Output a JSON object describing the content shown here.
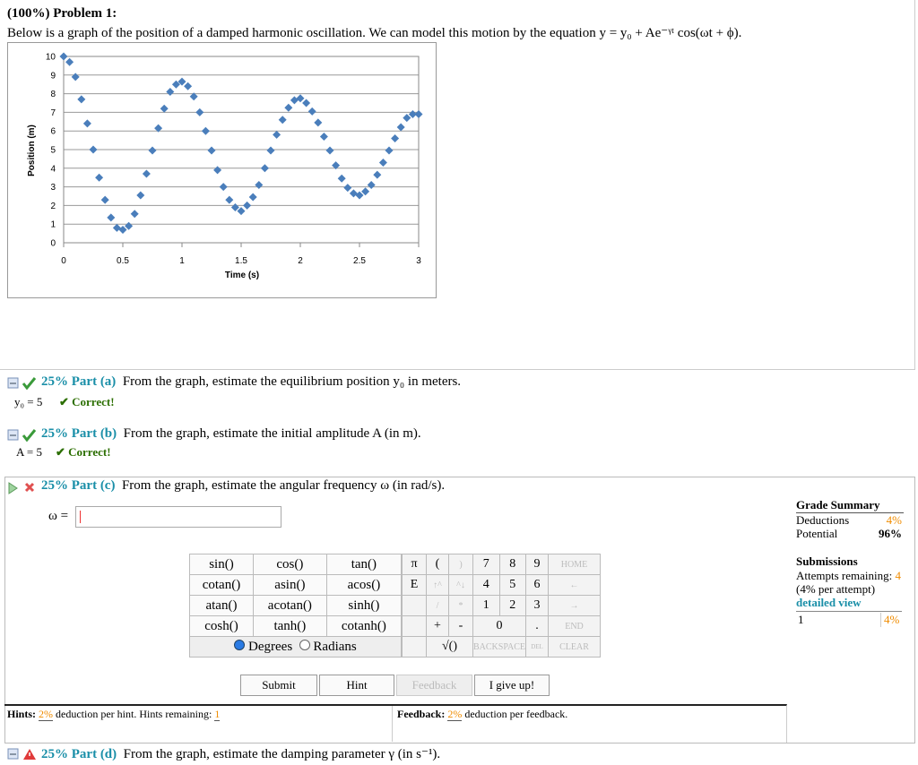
{
  "problem": {
    "title": "(100%) Problem 1:",
    "statement": "Below is a graph of the position of a damped harmonic oscillation. We can model this motion by the equation y = y₀ + Ae⁻ᵞᵗ cos(ωt + ϕ)."
  },
  "graph": {
    "type": "scatter",
    "xlabel": "Time (s)",
    "ylabel": "Position (m)",
    "color": "#4a7ebb",
    "grid": true,
    "xlim": [
      0,
      3
    ],
    "ylim": [
      0,
      10
    ],
    "xticks": [
      0,
      0.5,
      1,
      1.5,
      2,
      2.5,
      3
    ],
    "yticks": [
      0,
      1,
      2,
      3,
      4,
      5,
      6,
      7,
      8,
      9,
      10
    ],
    "x": [
      0,
      0.05,
      0.1,
      0.15,
      0.2,
      0.25,
      0.3,
      0.35,
      0.4,
      0.45,
      0.5,
      0.55,
      0.6,
      0.65,
      0.7,
      0.75,
      0.8,
      0.85,
      0.9,
      0.95,
      1,
      1.05,
      1.1,
      1.15,
      1.2,
      1.25,
      1.3,
      1.35,
      1.4,
      1.45,
      1.5,
      1.55,
      1.6,
      1.65,
      1.7,
      1.75,
      1.8,
      1.85,
      1.9,
      1.95,
      2,
      2.05,
      2.1,
      2.15,
      2.2,
      2.25,
      2.3,
      2.35,
      2.4,
      2.45,
      2.5,
      2.55,
      2.6,
      2.65,
      2.7,
      2.75,
      2.8,
      2.85,
      2.9,
      2.95,
      3
    ],
    "y": [
      10,
      9.7,
      8.9,
      7.7,
      6.4,
      5.0,
      3.5,
      2.3,
      1.35,
      0.8,
      0.7,
      0.9,
      1.55,
      2.55,
      3.7,
      4.95,
      6.15,
      7.2,
      8.1,
      8.5,
      8.65,
      8.4,
      7.85,
      7.0,
      6.0,
      4.95,
      3.9,
      3.0,
      2.3,
      1.9,
      1.7,
      2.0,
      2.45,
      3.1,
      4.0,
      4.95,
      5.8,
      6.6,
      7.25,
      7.65,
      7.75,
      7.5,
      7.05,
      6.45,
      5.7,
      4.95,
      4.15,
      3.45,
      2.95,
      2.65,
      2.55,
      2.75,
      3.1,
      3.65,
      4.3,
      4.95,
      5.6,
      6.2,
      6.7,
      6.9,
      6.9
    ]
  },
  "parts": [
    {
      "percent": "25%",
      "label": "Part (a)",
      "question": "From the graph, estimate the equilibrium position y₀ in meters.",
      "answer": "y₀ = 5",
      "status": "✔ Correct!"
    },
    {
      "percent": "25%",
      "label": "Part (b)",
      "question": "From the graph, estimate the initial amplitude A (in m).",
      "answer": "A = 5",
      "status": "✔ Correct!"
    },
    {
      "percent": "25%",
      "label": "Part (c)",
      "question": "From the graph, estimate the angular frequency ω (in rad/s).",
      "answer": "ω ="
    },
    {
      "percent": "25%",
      "label": "Part (d)",
      "question": "From the graph, estimate the damping parameter γ (in s⁻¹)."
    }
  ],
  "grade_summary": {
    "title": "Grade Summary",
    "rows": [
      [
        "Deductions",
        "4%"
      ],
      [
        "Potential",
        "96%"
      ]
    ]
  },
  "submissions": {
    "title": "Submissions",
    "attempts": "Attempts remaining:",
    "attempts_value": "4",
    "per_attempt": "(4% per attempt)",
    "detailed": "detailed view",
    "history": [
      [
        "1",
        "4%"
      ]
    ]
  },
  "calculator": {
    "functions": [
      [
        "sin()",
        "cos()",
        "tan()"
      ],
      [
        "cotan()",
        "asin()",
        "acos()"
      ],
      [
        "atan()",
        "acotan()",
        "sinh()"
      ],
      [
        "cosh()",
        "tanh()",
        "cotanh()"
      ]
    ],
    "angle_modes": [
      "Degrees",
      "Radians"
    ],
    "keys": [
      [
        "π",
        "(",
        ")",
        "7",
        "8",
        "9",
        "HOME"
      ],
      [
        "E",
        "↑^",
        "^↓",
        "4",
        "5",
        "6",
        "←"
      ],
      [
        "/",
        "*",
        "1",
        "2",
        "3",
        "→"
      ],
      [
        "+",
        "-",
        "0",
        ".",
        "END"
      ],
      [
        "√()",
        "BACKSPACE",
        "DEL",
        "CLEAR"
      ]
    ]
  },
  "buttons": [
    "Submit",
    "Hint",
    "Feedback",
    "I give up!"
  ],
  "hints": {
    "label": "Hints:",
    "value": "2%",
    "text": "deduction per hint. Hints remaining:",
    "remaining": "1"
  },
  "feedback": {
    "label": "Feedback:",
    "value": "2%",
    "text": "deduction per feedback."
  }
}
